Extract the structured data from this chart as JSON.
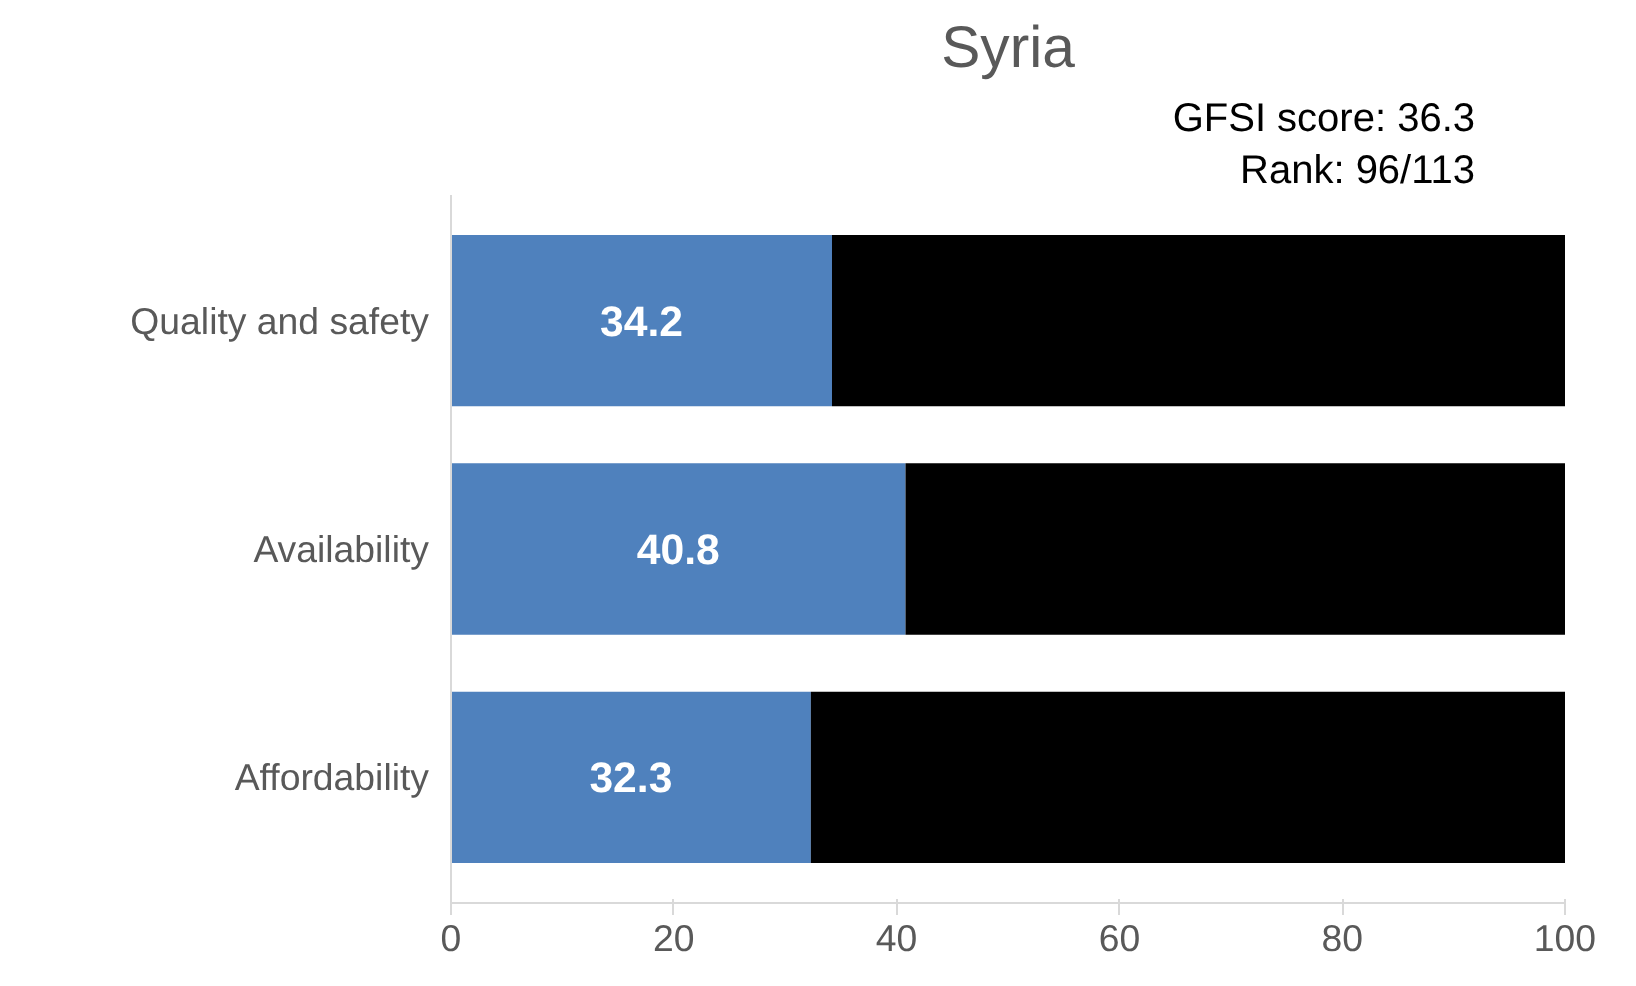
{
  "chart_data": {
    "type": "bar",
    "orientation": "horizontal",
    "stacked": true,
    "title": "Syria",
    "categories": [
      "Quality and safety",
      "Availability",
      "Affordability"
    ],
    "series": [
      {
        "color": "#4f81bd",
        "values": [
          34.2,
          40.8,
          32.3
        ],
        "value_labels": [
          "34.2",
          "40.8",
          "32.3"
        ]
      },
      {
        "color": "#000000",
        "values": [
          65.8,
          59.2,
          67.7
        ]
      }
    ],
    "xlim": [
      0,
      100
    ],
    "xticks": [
      0,
      20,
      40,
      60,
      80,
      100
    ],
    "grid": false,
    "annotations": [
      "GFSI score: 36.3",
      "Rank: 96/113"
    ]
  }
}
